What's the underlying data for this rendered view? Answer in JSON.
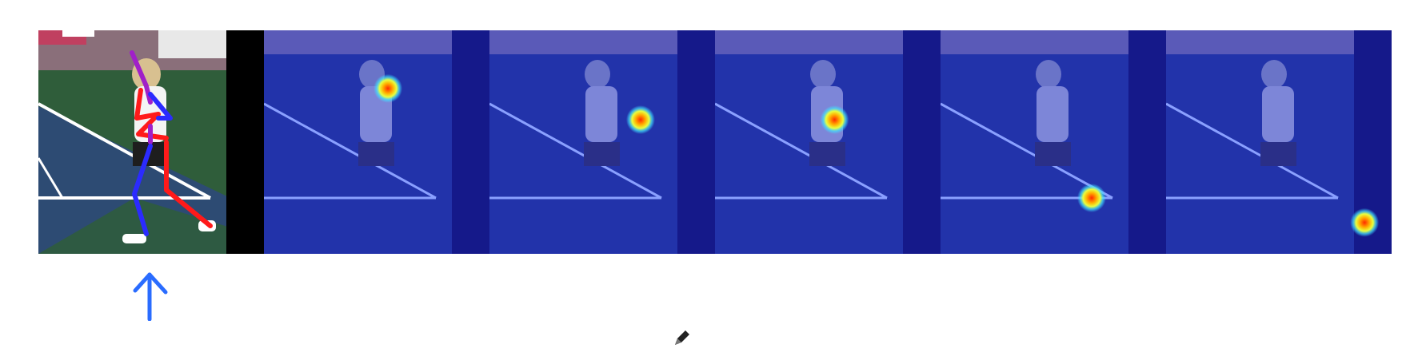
{
  "colors": {
    "background": "#ffffff",
    "court_green": "#2f5d3a",
    "court_blue": "#2d4b73",
    "heatmap_base": "#2233aa",
    "heatmap_dark_strip": "#15198a",
    "skeleton_red": "#ff1a1a",
    "skeleton_blue": "#2b2bff",
    "skeleton_purple": "#a020c8",
    "annotation_arrow": "#2a6cff"
  },
  "panels": [
    {
      "kind": "pose-overlay"
    },
    {
      "kind": "heatmap",
      "joint_x": 0.55,
      "joint_y": 0.26
    },
    {
      "kind": "heatmap",
      "joint_x": 0.67,
      "joint_y": 0.4
    },
    {
      "kind": "heatmap",
      "joint_x": 0.53,
      "joint_y": 0.4
    },
    {
      "kind": "heatmap",
      "joint_x": 0.67,
      "joint_y": 0.75
    },
    {
      "kind": "heatmap",
      "joint_x": 0.88,
      "joint_y": 0.86
    }
  ],
  "icons": {
    "arrow": "up-arrow-icon",
    "cursor": "pencil-icon"
  }
}
